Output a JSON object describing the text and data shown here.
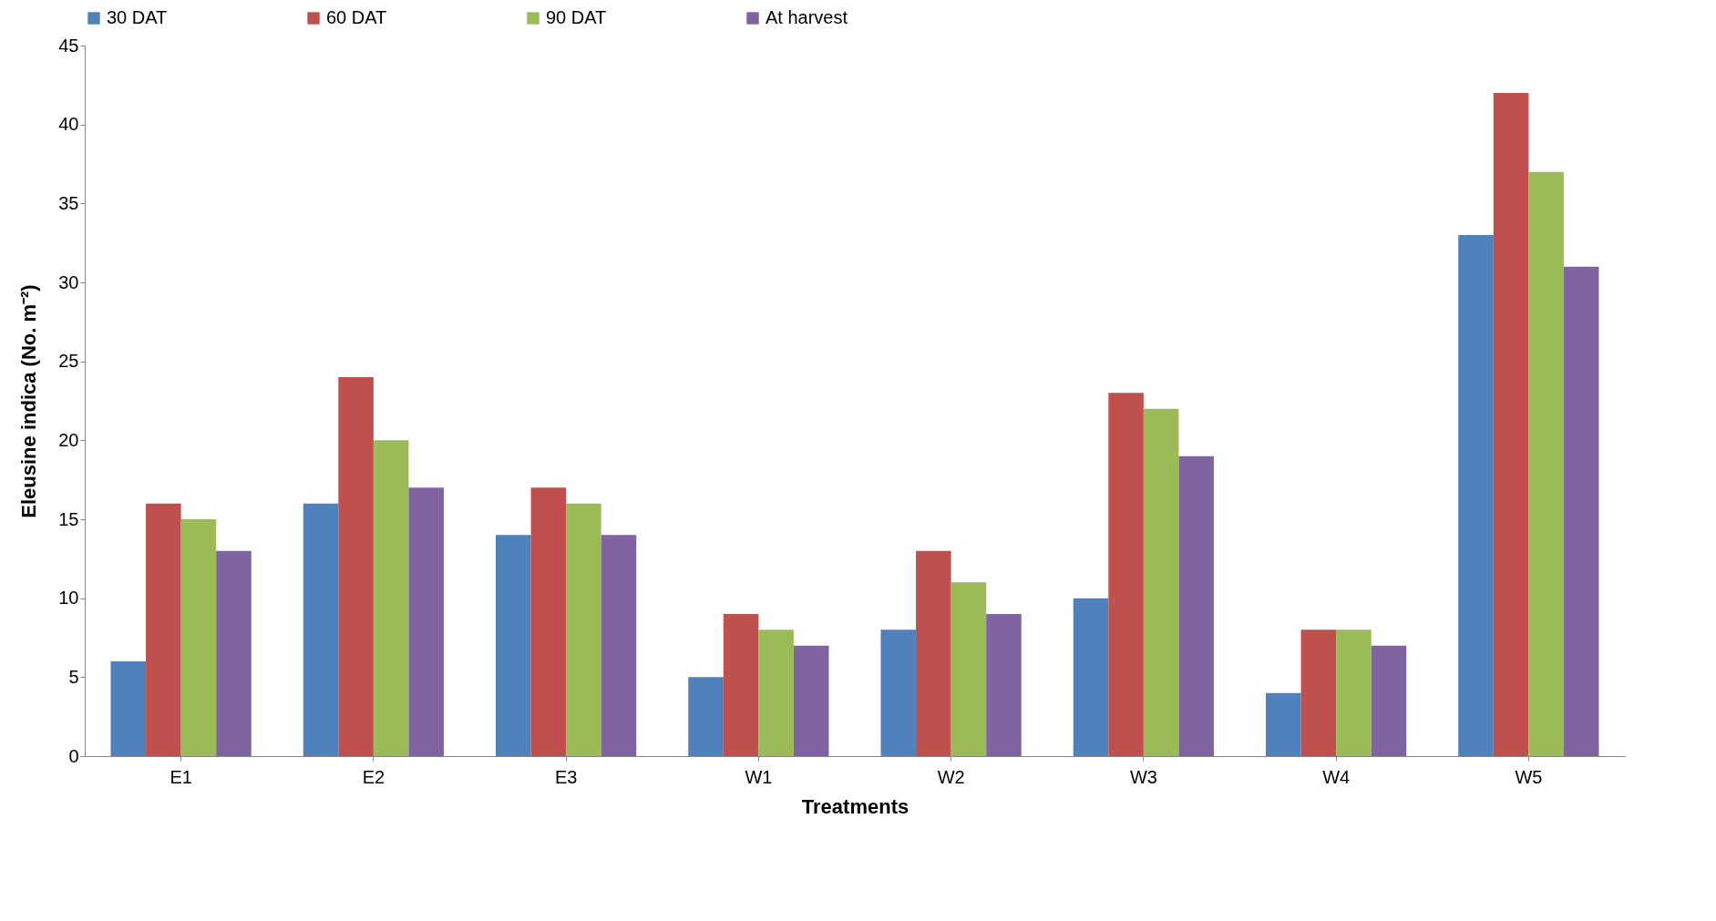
{
  "chart_data": {
    "type": "bar",
    "xlabel": "Treatments",
    "ylabel": "Eleusine indica (No. m⁻²)",
    "categories": [
      "E1",
      "E2",
      "E3",
      "W1",
      "W2",
      "W3",
      "W4",
      "W5"
    ],
    "series": [
      {
        "name": "30 DAT",
        "color": "#4f81bd",
        "values": [
          6,
          16,
          14,
          5,
          8,
          10,
          4,
          33
        ]
      },
      {
        "name": "60 DAT",
        "color": "#c0504d",
        "values": [
          16,
          24,
          17,
          9,
          13,
          23,
          8,
          42
        ]
      },
      {
        "name": "90 DAT",
        "color": "#9bbb59",
        "values": [
          15,
          20,
          16,
          8,
          11,
          22,
          8,
          37
        ]
      },
      {
        "name": "At harvest",
        "color": "#8064a2",
        "values": [
          13,
          17,
          14,
          7,
          9,
          19,
          7,
          31
        ]
      }
    ],
    "ylim": [
      0,
      45
    ],
    "yticks": [
      0,
      5,
      10,
      15,
      20,
      25,
      30,
      35,
      40,
      45
    ],
    "legend": "top"
  }
}
